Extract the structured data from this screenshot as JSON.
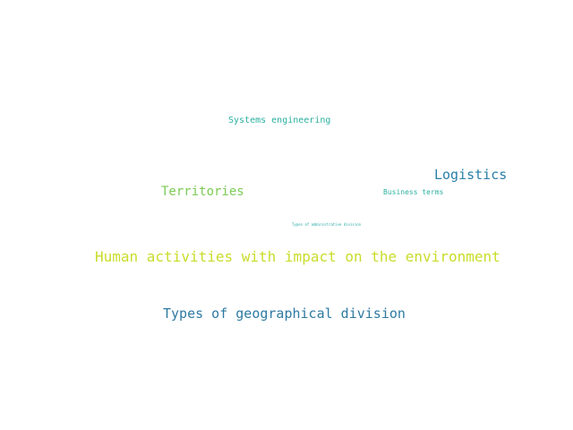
{
  "wordcloud": {
    "words": [
      {
        "text": "Systems engineering",
        "color": "#2ab0a0"
      },
      {
        "text": "Logistics",
        "color": "#2a7fa8"
      },
      {
        "text": "Territories",
        "color": "#7ccb55"
      },
      {
        "text": "Business terms",
        "color": "#2ab0a0"
      },
      {
        "text": "Types of administrative division",
        "color": "#2aa9a6"
      },
      {
        "text": "Human activities with impact on the environment",
        "color": "#c9dc2a"
      },
      {
        "text": "Types of geographical division",
        "color": "#2e7aa2"
      }
    ]
  }
}
